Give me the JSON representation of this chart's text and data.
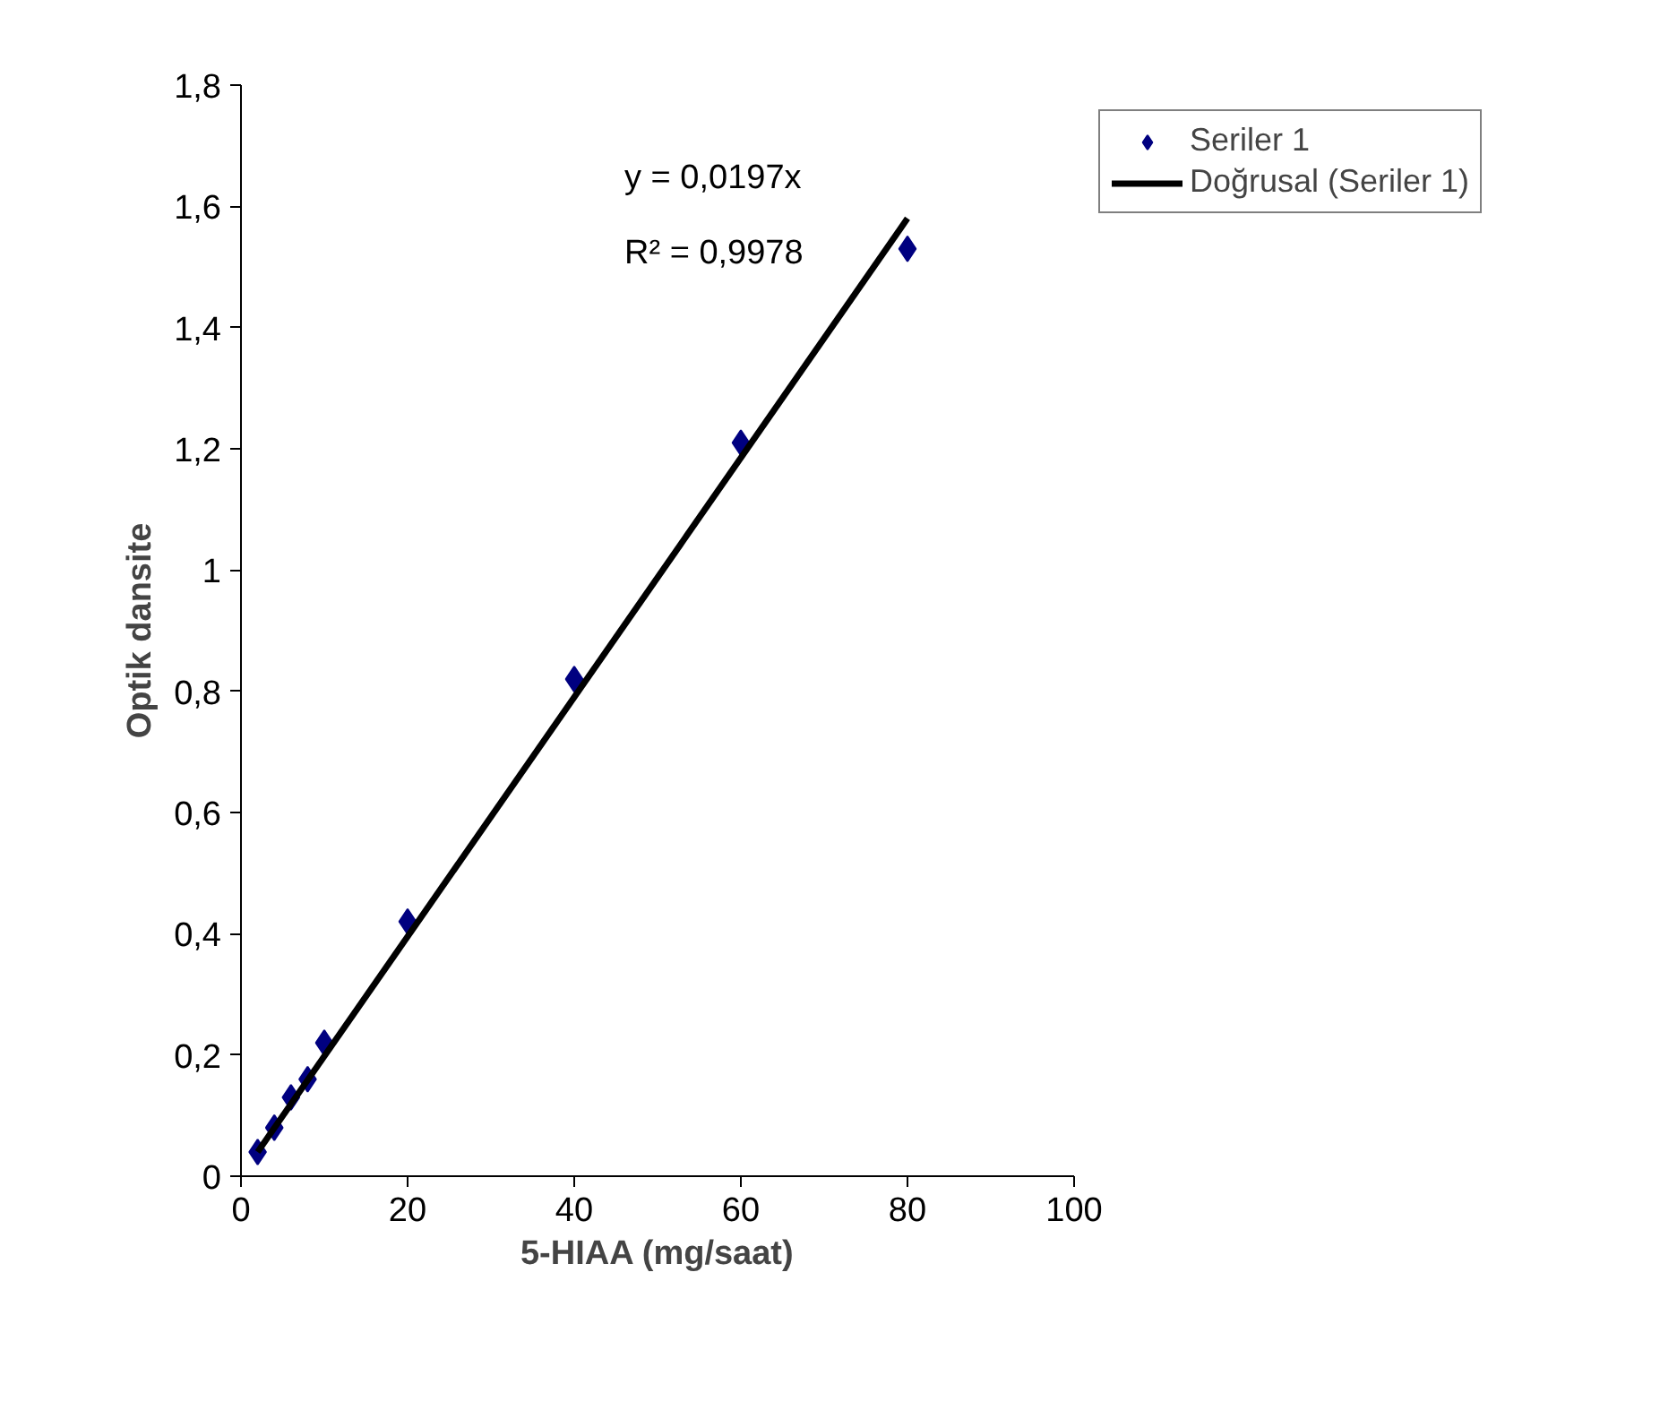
{
  "chart_data": {
    "type": "scatter",
    "xlabel": "5-HIAA (mg/saat)",
    "ylabel": "Optik dansite",
    "xlim": [
      0,
      100
    ],
    "xticks": [
      0,
      20,
      40,
      60,
      80,
      100
    ],
    "ylim": [
      0,
      1.8
    ],
    "yticks": [
      {
        "value": 0,
        "label": "0"
      },
      {
        "value": 0.2,
        "label": "0,2"
      },
      {
        "value": 0.4,
        "label": "0,4"
      },
      {
        "value": 0.6,
        "label": "0,6"
      },
      {
        "value": 0.8,
        "label": "0,8"
      },
      {
        "value": 1,
        "label": "1"
      },
      {
        "value": 1.2,
        "label": "1,2"
      },
      {
        "value": 1.4,
        "label": "1,4"
      },
      {
        "value": 1.6,
        "label": "1,6"
      },
      {
        "value": 1.8,
        "label": "1,8"
      }
    ],
    "grid": false,
    "legend": "top right",
    "series": [
      {
        "name": "Seriler 1",
        "marker": "diamond",
        "color": "#000080",
        "x": [
          2,
          4,
          6,
          8,
          10,
          20,
          40,
          60,
          80
        ],
        "values": [
          0.04,
          0.08,
          0.13,
          0.16,
          0.22,
          0.42,
          0.82,
          1.21,
          1.53
        ]
      },
      {
        "name": "Doğrusal (Seriler 1)",
        "type": "line",
        "color": "#000000",
        "line_style": "solid",
        "x": [
          2,
          80
        ],
        "values": [
          0.04,
          1.58
        ]
      }
    ],
    "annotations": [
      "y = 0,0197x",
      "R² = 0,9978"
    ]
  }
}
